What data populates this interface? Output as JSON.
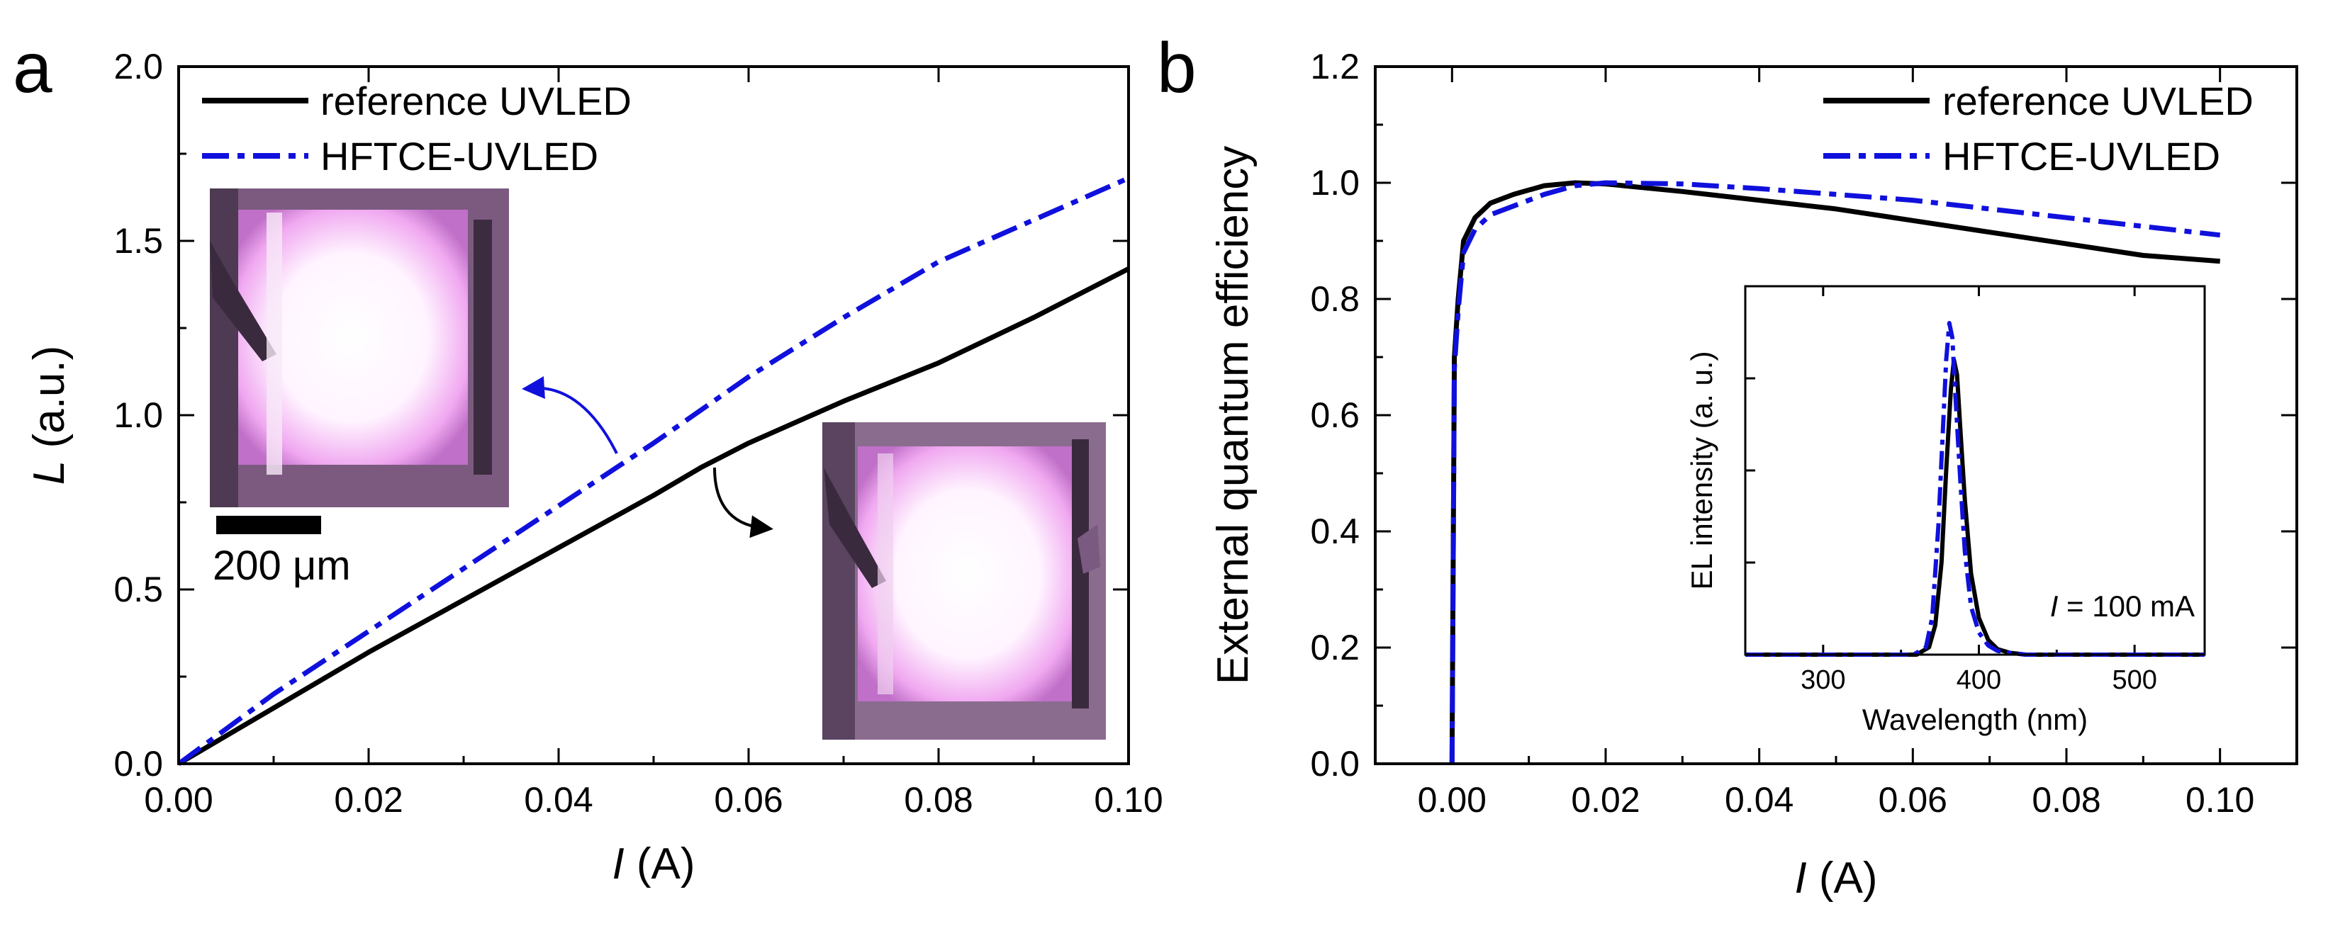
{
  "chart_data": [
    {
      "type": "line",
      "panel": "a",
      "xlabel": {
        "italic": "I",
        "rest": " (A)"
      },
      "ylabel": {
        "italic": "L",
        "rest": " (a.u.)"
      },
      "xlim": [
        0,
        0.1
      ],
      "ylim": [
        0,
        2.0
      ],
      "xticks": [
        "0.00",
        "0.02",
        "0.04",
        "0.06",
        "0.08",
        "0.10"
      ],
      "yticks": [
        "0.0",
        "0.5",
        "1.0",
        "1.5",
        "2.0"
      ],
      "legend_position": "top-left",
      "series": [
        {
          "name": "reference UVLED",
          "color": "#000000",
          "style": "solid",
          "x": [
            0,
            0.005,
            0.01,
            0.02,
            0.03,
            0.04,
            0.05,
            0.055,
            0.06,
            0.065,
            0.07,
            0.08,
            0.09,
            0.1
          ],
          "y": [
            0,
            0.08,
            0.16,
            0.32,
            0.47,
            0.62,
            0.77,
            0.85,
            0.92,
            0.98,
            1.04,
            1.15,
            1.28,
            1.42
          ]
        },
        {
          "name": "HFTCE-UVLED",
          "color": "#1010dd",
          "style": "dashdot",
          "x": [
            0,
            0.005,
            0.01,
            0.02,
            0.03,
            0.04,
            0.05,
            0.06,
            0.07,
            0.08,
            0.09,
            0.1
          ],
          "y": [
            0,
            0.1,
            0.2,
            0.38,
            0.56,
            0.74,
            0.92,
            1.11,
            1.28,
            1.44,
            1.56,
            1.68
          ]
        }
      ],
      "annotations": {
        "scale_bar": "200 μm"
      }
    },
    {
      "type": "line",
      "panel": "b",
      "xlabel": {
        "italic": "I",
        "rest": " (A)"
      },
      "ylabel": "External quantum efficiency",
      "xlim": [
        -0.01,
        0.11
      ],
      "ylim": [
        0,
        1.2
      ],
      "xticks": [
        "0.00",
        "0.02",
        "0.04",
        "0.06",
        "0.08",
        "0.10"
      ],
      "yticks": [
        "0.0",
        "0.2",
        "0.4",
        "0.6",
        "0.8",
        "1.0",
        "1.2"
      ],
      "legend_position": "top-right",
      "series": [
        {
          "name": "reference UVLED",
          "color": "#000000",
          "style": "solid",
          "x": [
            0,
            0.0003,
            0.0008,
            0.0015,
            0.003,
            0.005,
            0.008,
            0.012,
            0.016,
            0.02,
            0.03,
            0.04,
            0.05,
            0.06,
            0.07,
            0.08,
            0.09,
            0.1
          ],
          "y": [
            0,
            0.7,
            0.8,
            0.9,
            0.94,
            0.965,
            0.98,
            0.995,
            1.0,
            0.998,
            0.985,
            0.97,
            0.955,
            0.935,
            0.915,
            0.895,
            0.875,
            0.865
          ]
        },
        {
          "name": "HFTCE-UVLED",
          "color": "#1010dd",
          "style": "dashdot",
          "x": [
            0,
            0.0003,
            0.0008,
            0.0015,
            0.003,
            0.005,
            0.008,
            0.012,
            0.016,
            0.02,
            0.03,
            0.04,
            0.05,
            0.06,
            0.07,
            0.08,
            0.09,
            0.1
          ],
          "y": [
            0,
            0.68,
            0.78,
            0.88,
            0.92,
            0.945,
            0.96,
            0.98,
            0.995,
            1.0,
            0.998,
            0.99,
            0.98,
            0.97,
            0.955,
            0.94,
            0.925,
            0.91
          ]
        }
      ],
      "inset": {
        "type": "line",
        "xlabel": "Wavelength (nm)",
        "ylabel": "EL intensity (a. u.)",
        "xlim": [
          250,
          545
        ],
        "ylim": [
          0,
          1.0
        ],
        "xticks": [
          "300",
          "400",
          "500"
        ],
        "annotation": {
          "italic": "I",
          "rest": " = 100 mA"
        },
        "series": [
          {
            "name": "reference UVLED",
            "color": "#000000",
            "style": "solid",
            "x": [
              250,
              360,
              368,
              372,
              376,
              379,
              382,
              384,
              386,
              388,
              391,
              395,
              400,
              406,
              412,
              420,
              430,
              545
            ],
            "y": [
              0,
              0,
              0.02,
              0.08,
              0.25,
              0.5,
              0.72,
              0.8,
              0.76,
              0.62,
              0.42,
              0.22,
              0.1,
              0.04,
              0.015,
              0.005,
              0,
              0
            ]
          },
          {
            "name": "HFTCE-UVLED",
            "color": "#1010dd",
            "style": "dashdot",
            "x": [
              250,
              358,
              366,
              370,
              374,
              377,
              379,
              381,
              383,
              385,
              388,
              391,
              395,
              400,
              406,
              412,
              420,
              430,
              545
            ],
            "y": [
              0,
              0,
              0.02,
              0.1,
              0.35,
              0.62,
              0.8,
              0.9,
              0.86,
              0.7,
              0.48,
              0.28,
              0.13,
              0.06,
              0.025,
              0.01,
              0.005,
              0,
              0
            ]
          }
        ]
      }
    }
  ]
}
